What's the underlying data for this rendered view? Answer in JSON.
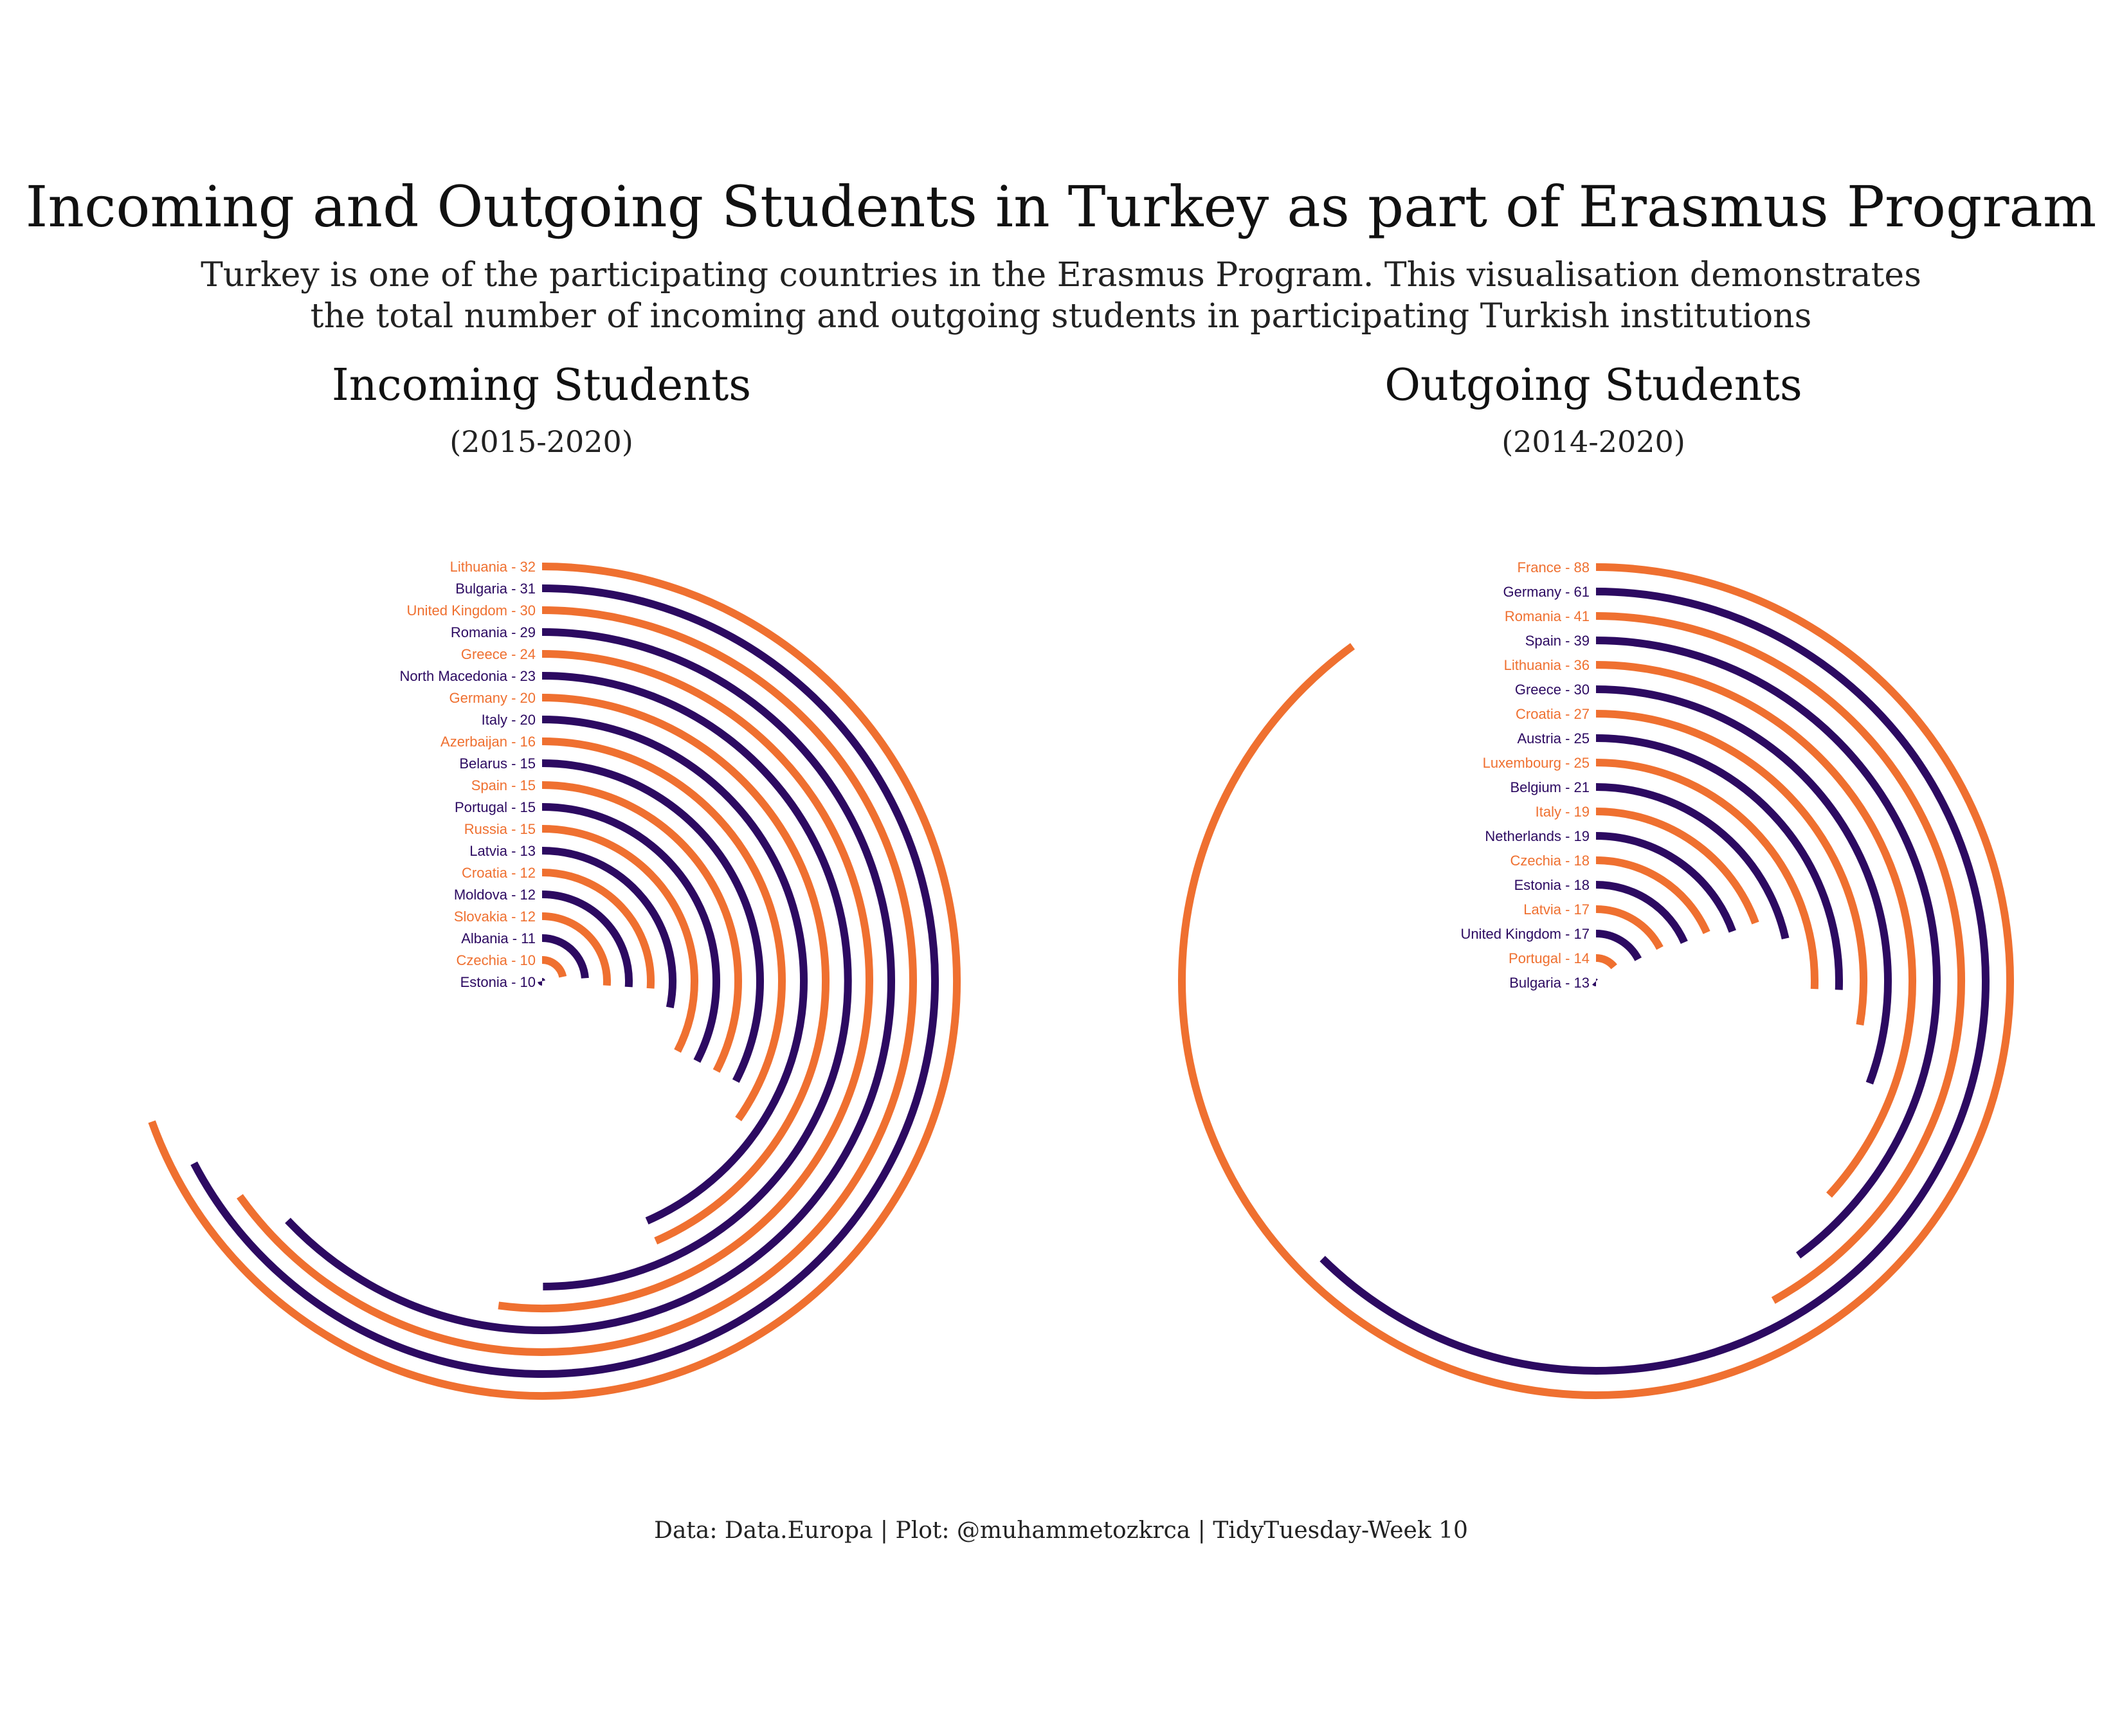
{
  "title": "Incoming and Outgoing Students in  Turkey as part of Erasmus Program",
  "subtitle_line1": "Turkey is one of the participating countries in the Erasmus Program. This visualisation demonstrates",
  "subtitle_line2": "the total number of incoming and outgoing students in participating Turkish institutions",
  "caption": "Data: Data.Europa | Plot: @muhammetozkrca | TidyTuesday-Week 10",
  "colors": {
    "orange": "#ef7030",
    "purple": "#2c0a61",
    "background": "#ffffff"
  },
  "chart_data": [
    {
      "type": "radial-bar",
      "title": "Incoming Students",
      "subtitle": "(2015-2020)",
      "max_value": 32,
      "categories": [
        "Lithuania",
        "Bulgaria",
        "United Kingdom",
        "Romania",
        "Greece",
        "North Macedonia",
        "Germany",
        "Italy",
        "Azerbaijan",
        "Belarus",
        "Spain",
        "Portugal",
        "Russia",
        "Latvia",
        "Croatia",
        "Moldova",
        "Slovakia",
        "Albania",
        "Czechia",
        "Estonia"
      ],
      "values": [
        32,
        31,
        30,
        29,
        24,
        23,
        20,
        20,
        16,
        15,
        15,
        15,
        15,
        13,
        12,
        12,
        12,
        11,
        10,
        10
      ],
      "labels": [
        "Lithuania - 32",
        "Bulgaria - 31",
        "United Kingdom - 30",
        "Romania - 29",
        "Greece - 24",
        "North Macedonia - 23",
        "Germany - 20",
        "Italy - 20",
        "Azerbaijan - 16",
        "Belarus - 15",
        "Spain - 15",
        "Portugal - 15",
        "Russia - 15",
        "Latvia - 13",
        "Croatia - 12",
        "Moldova - 12",
        "Slovakia - 12",
        "Albania - 11",
        "Czechia - 10",
        "Estonia - 10"
      ]
    },
    {
      "type": "radial-bar",
      "title": "Outgoing Students",
      "subtitle": "(2014-2020)",
      "max_value": 88,
      "categories": [
        "France",
        "Germany",
        "Romania",
        "Spain",
        "Lithuania",
        "Greece",
        "Croatia",
        "Austria",
        "Luxembourg",
        "Belgium",
        "Italy",
        "Netherlands",
        "Czechia",
        "Estonia",
        "Latvia",
        "United Kingdom",
        "Portugal",
        "Bulgaria"
      ],
      "values": [
        88,
        61,
        41,
        39,
        36,
        30,
        27,
        25,
        25,
        21,
        19,
        19,
        18,
        18,
        17,
        17,
        14,
        13
      ],
      "labels": [
        "France - 88",
        "Germany - 61",
        "Romania - 41",
        "Spain - 39",
        "Lithuania - 36",
        "Greece - 30",
        "Croatia - 27",
        "Austria - 25",
        "Luxembourg - 25",
        "Belgium - 21",
        "Italy - 19",
        "Netherlands - 19",
        "Czechia - 18",
        "Estonia - 18",
        "Latvia - 17",
        "United Kingdom - 17",
        "Portugal - 14",
        "Bulgaria - 13"
      ]
    }
  ]
}
